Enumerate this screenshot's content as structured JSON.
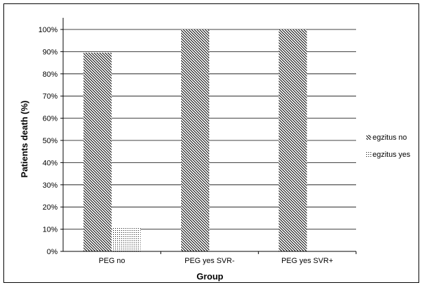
{
  "chart_data": {
    "type": "bar",
    "title": "",
    "xlabel": "Group",
    "ylabel": "Patients death (%)",
    "categories": [
      "PEG no",
      "PEG yes SVR-",
      "PEG yes SVR+"
    ],
    "series": [
      {
        "name": "egzitus no",
        "values": [
          89.5,
          100,
          100
        ],
        "pattern": "diagonal-hatch"
      },
      {
        "name": "egzitus yes",
        "values": [
          10.5,
          0,
          0
        ],
        "pattern": "dots"
      }
    ],
    "ylim": [
      0,
      100
    ],
    "yticks": [
      "0%",
      "10%",
      "20%",
      "30%",
      "40%",
      "50%",
      "60%",
      "70%",
      "80%",
      "90%",
      "100%"
    ],
    "grid": true,
    "legend_position": "right"
  }
}
